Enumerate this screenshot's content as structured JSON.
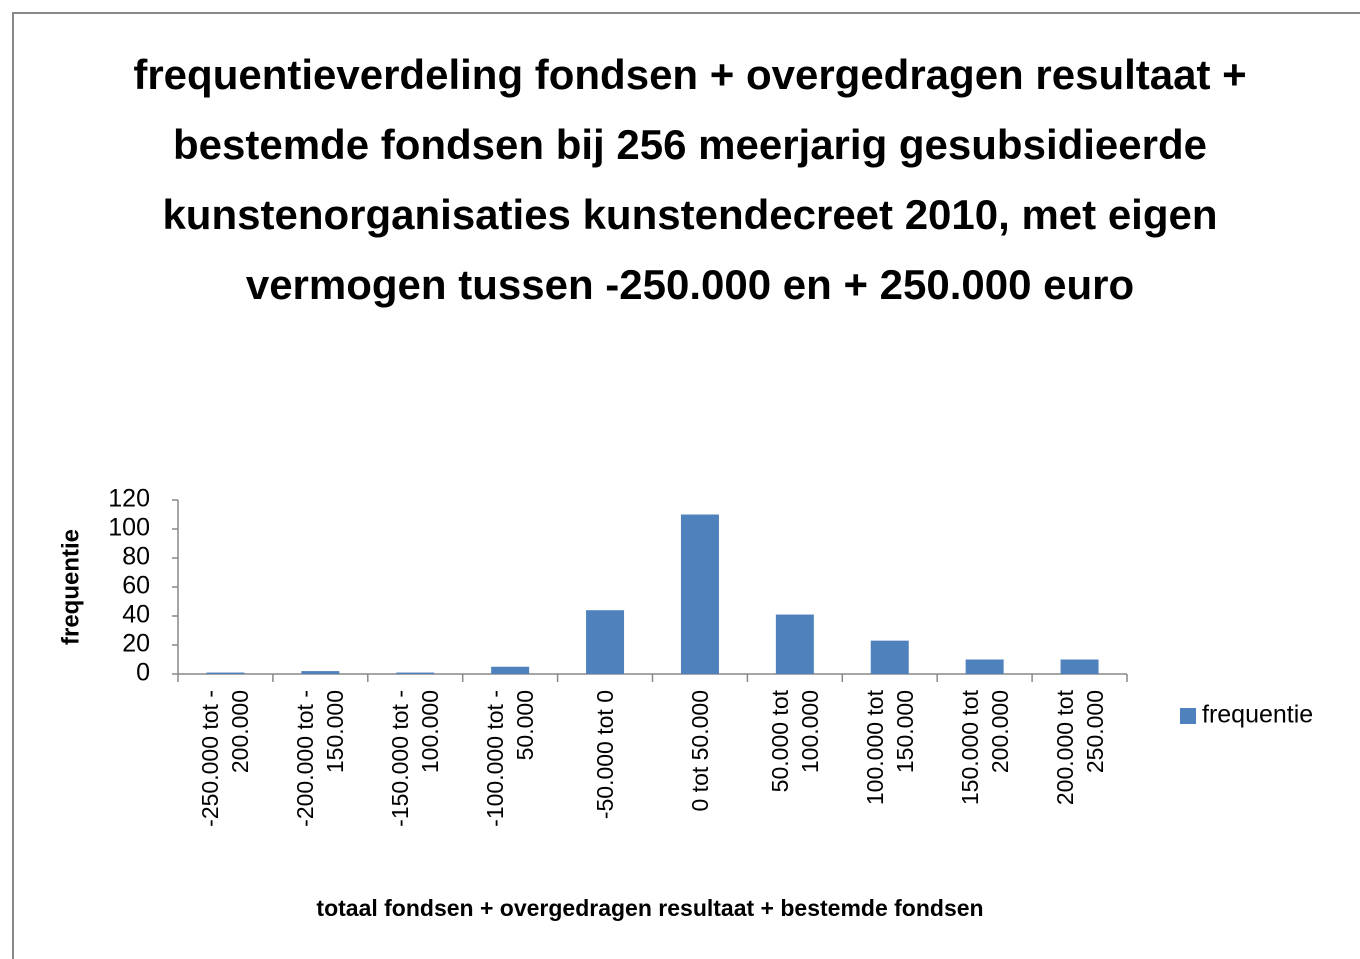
{
  "chart_data": {
    "type": "bar",
    "title": "frequentieverdeling fondsen + overgedragen resultaat + bestemde fondsen bij 256 meerjarig gesubsidieerde kunstenorganisaties kunstendecreet 2010, met eigen vermogen tussen -250.000 en + 250.000 euro",
    "x_label": "totaal  fondsen + overgedragen resultaat  + bestemde fondsen",
    "y_label": "frequentie",
    "categories": [
      "-250.000 tot - 200.000",
      "-200.000 tot - 150.000",
      "-150.000 tot - 100.000",
      "-100.000 tot - 50.000",
      "-50.000 tot 0",
      "0 tot  50.000",
      "50.000 tot 100.000",
      "100.000 tot 150.000",
      "150.000 tot 200.000",
      "200.000 tot 250.000"
    ],
    "series": [
      {
        "name": "frequentie",
        "color": "#4f81bd",
        "values": [
          1,
          2,
          1,
          5,
          44,
          110,
          41,
          23,
          10,
          10
        ]
      }
    ],
    "ylim": [
      0,
      120
    ],
    "yticks": [
      0,
      20,
      40,
      60,
      80,
      100,
      120
    ],
    "legend": "right"
  }
}
